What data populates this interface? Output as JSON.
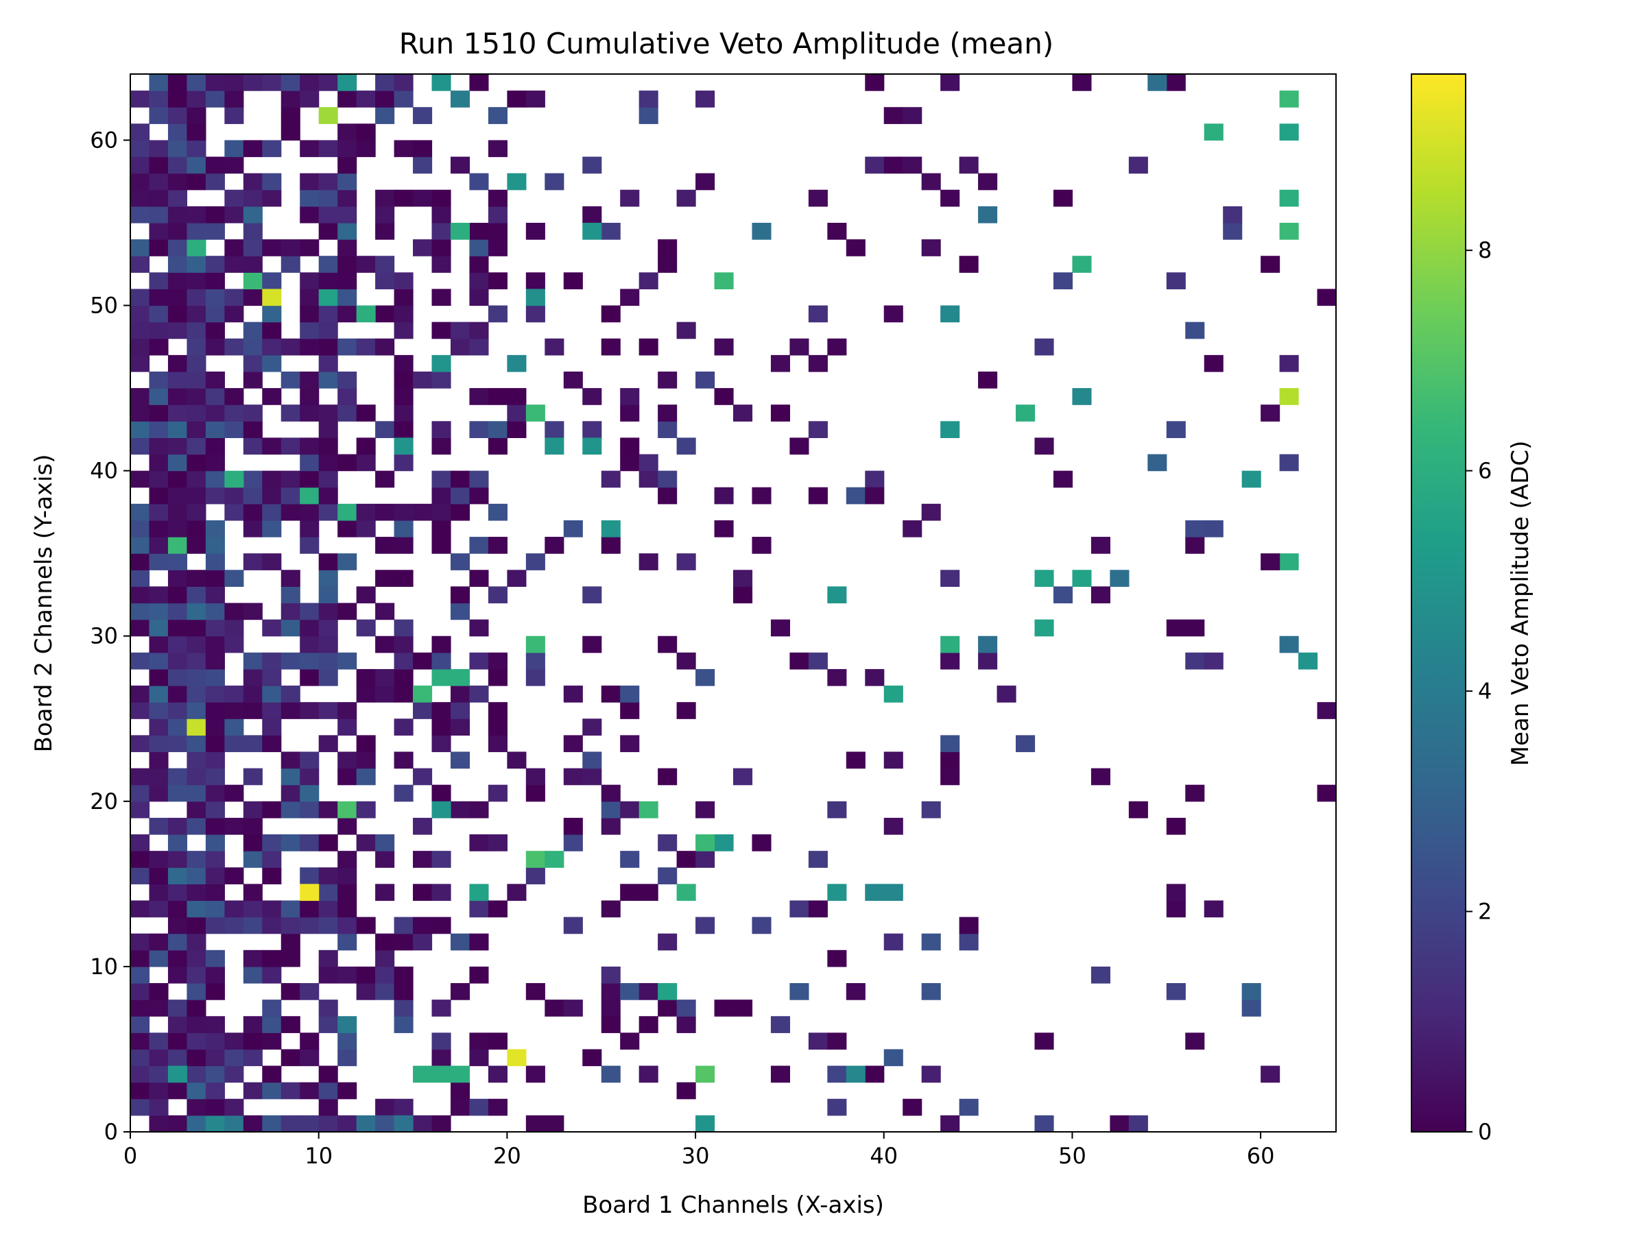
{
  "chart_data": {
    "type": "heatmap",
    "title": "Run 1510 Cumulative Veto Amplitude (mean)",
    "xlabel": "Board 1 Channels (X-axis)",
    "ylabel": "Board 2 Channels (Y-axis)",
    "colorbar_label": "Mean Veto Amplitude (ADC)",
    "colormap": "viridis",
    "xlim": [
      0,
      64
    ],
    "ylim": [
      0,
      64
    ],
    "clim": [
      0,
      9.6
    ],
    "x_ticks": [
      0,
      10,
      20,
      30,
      40,
      50,
      60
    ],
    "y_ticks": [
      0,
      10,
      20,
      30,
      40,
      50,
      60
    ],
    "colorbar_ticks": [
      0,
      2,
      4,
      6,
      8
    ],
    "grid": false,
    "cells": [
      [
        1,
        0,
        0.3
      ],
      [
        2,
        0,
        0.2
      ],
      [
        4,
        0,
        4.5
      ],
      [
        5,
        0,
        3.8
      ],
      [
        8,
        0,
        1.5
      ],
      [
        9,
        0,
        1.5
      ],
      [
        10,
        0,
        1.2
      ],
      [
        11,
        0,
        0.8
      ],
      [
        12,
        0,
        3.5
      ],
      [
        13,
        0,
        2.5
      ],
      [
        14,
        0,
        3.6
      ],
      [
        16,
        0,
        0.1
      ],
      [
        21,
        0,
        0.1
      ],
      [
        22,
        0,
        0.1
      ],
      [
        30,
        0,
        5.0
      ],
      [
        48,
        0,
        2.0
      ],
      [
        52,
        0,
        0.1
      ],
      [
        53,
        0,
        1.5
      ],
      [
        0,
        3,
        1.0
      ],
      [
        2,
        3,
        5.0
      ],
      [
        3,
        3,
        1.5
      ],
      [
        5,
        3,
        1.2
      ],
      [
        15,
        3,
        6.0
      ],
      [
        16,
        3,
        6.0
      ],
      [
        17,
        3,
        6.0
      ],
      [
        25,
        3,
        2.5
      ],
      [
        27,
        3,
        0.5
      ],
      [
        30,
        3,
        7.0
      ],
      [
        34,
        3,
        0.1
      ],
      [
        37,
        3,
        2.0
      ],
      [
        38,
        3,
        4.5
      ],
      [
        60,
        3,
        0.5
      ],
      [
        20,
        4,
        9.2
      ],
      [
        16,
        5,
        1.5
      ],
      [
        18,
        5,
        0.1
      ],
      [
        56,
        5,
        0.1
      ],
      [
        37,
        5,
        0.1
      ],
      [
        4,
        6,
        0.4
      ],
      [
        11,
        6,
        4.0
      ],
      [
        29,
        7,
        2.0
      ],
      [
        26,
        8,
        2.5
      ],
      [
        27,
        8,
        0.4
      ],
      [
        28,
        8,
        5.5
      ],
      [
        59,
        8,
        3.0
      ],
      [
        9,
        14,
        9.4
      ],
      [
        18,
        14,
        5.5
      ],
      [
        29,
        14,
        6.2
      ],
      [
        37,
        14,
        5.0
      ],
      [
        39,
        14,
        4.5
      ],
      [
        40,
        14,
        4.5
      ],
      [
        21,
        16,
        6.8
      ],
      [
        22,
        16,
        6.2
      ],
      [
        11,
        19,
        6.8
      ],
      [
        16,
        19,
        5.0
      ],
      [
        27,
        19,
        6.5
      ],
      [
        31,
        17,
        5.0
      ],
      [
        30,
        17,
        6.5
      ],
      [
        3,
        24,
        8.8
      ],
      [
        15,
        26,
        6.5
      ],
      [
        16,
        27,
        6.0
      ],
      [
        17,
        27,
        6.0
      ],
      [
        40,
        26,
        5.5
      ],
      [
        21,
        29,
        6.5
      ],
      [
        62,
        28,
        5.0
      ],
      [
        61,
        29,
        3.5
      ],
      [
        43,
        29,
        6.0
      ],
      [
        45,
        29,
        3.5
      ],
      [
        48,
        30,
        5.5
      ],
      [
        37,
        32,
        5.0
      ],
      [
        48,
        33,
        5.5
      ],
      [
        50,
        33,
        5.5
      ],
      [
        52,
        33,
        3.5
      ],
      [
        61,
        34,
        6.0
      ],
      [
        60,
        34,
        0.1
      ],
      [
        2,
        35,
        6.5
      ],
      [
        25,
        36,
        5.0
      ],
      [
        11,
        37,
        6.0
      ],
      [
        15,
        37,
        0.3
      ],
      [
        33,
        38,
        0.1
      ],
      [
        39,
        38,
        0.1
      ],
      [
        61,
        44,
        8.5
      ],
      [
        21,
        43,
        6.5
      ],
      [
        60,
        43,
        0.2
      ],
      [
        47,
        43,
        6.0
      ],
      [
        50,
        44,
        4.5
      ],
      [
        43,
        42,
        5.0
      ],
      [
        12,
        49,
        6.0
      ],
      [
        7,
        50,
        9.0
      ],
      [
        6,
        51,
        6.5
      ],
      [
        10,
        50,
        5.5
      ],
      [
        21,
        50,
        4.8
      ],
      [
        31,
        51,
        6.5
      ],
      [
        50,
        52,
        6.0
      ],
      [
        49,
        51,
        2.0
      ],
      [
        43,
        49,
        4.5
      ],
      [
        16,
        46,
        5.0
      ],
      [
        20,
        46,
        4.5
      ],
      [
        14,
        41,
        5.0
      ],
      [
        24,
        41,
        5.0
      ],
      [
        22,
        41,
        5.0
      ],
      [
        59,
        39,
        5.0
      ],
      [
        54,
        40,
        3.0
      ],
      [
        5,
        39,
        6.0
      ],
      [
        9,
        38,
        6.0
      ],
      [
        61,
        60,
        5.5
      ],
      [
        61,
        62,
        6.5
      ],
      [
        57,
        60,
        6.0
      ],
      [
        10,
        61,
        8.2
      ],
      [
        11,
        63,
        5.0
      ],
      [
        16,
        63,
        5.0
      ],
      [
        17,
        62,
        4.0
      ],
      [
        61,
        56,
        6.0
      ],
      [
        61,
        54,
        6.5
      ],
      [
        3,
        53,
        6.0
      ],
      [
        17,
        54,
        6.0
      ],
      [
        24,
        54,
        5.0
      ],
      [
        20,
        57,
        5.0
      ],
      [
        54,
        63,
        3.5
      ],
      [
        45,
        55,
        3.5
      ],
      [
        33,
        54,
        3.5
      ]
    ]
  }
}
